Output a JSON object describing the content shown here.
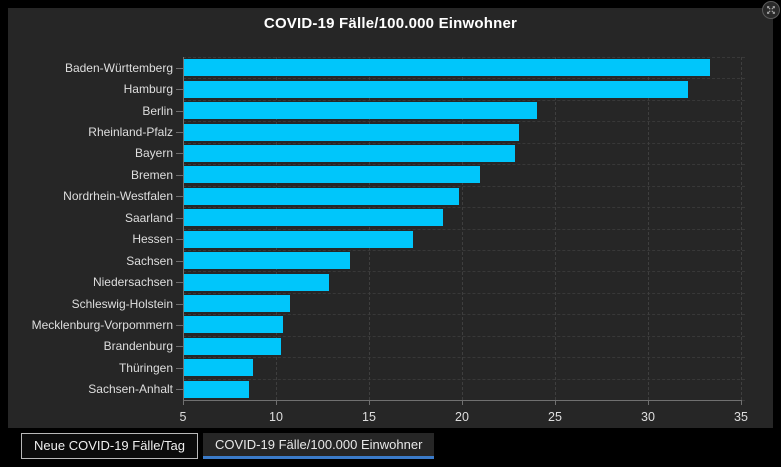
{
  "header": {
    "title": "COVID-19 Fälle/100.000 Einwohner"
  },
  "colors": {
    "page_bg": "#000000",
    "panel_bg": "#262626",
    "bar": "#00c6fb",
    "grid": "#3e3e3e",
    "axis": "#707070",
    "tick_label": "#dedede",
    "title_text": "#ffffff",
    "active_tab_underline": "#3b7bc9"
  },
  "icons": {
    "expand": "expand-arrows-icon"
  },
  "chart_data": {
    "type": "bar",
    "orientation": "horizontal",
    "title": "COVID-19 Fälle/100.000 Einwohner",
    "categories": [
      "Baden-Württemberg",
      "Hamburg",
      "Berlin",
      "Rheinland-Pfalz",
      "Bayern",
      "Bremen",
      "Nordrhein-Westfalen",
      "Saarland",
      "Hessen",
      "Sachsen",
      "Niedersachsen",
      "Schleswig-Holstein",
      "Mecklenburg-Vorpommern",
      "Brandenburg",
      "Thüringen",
      "Sachsen-Anhalt"
    ],
    "values": [
      33.3,
      32.1,
      24.0,
      23.0,
      22.8,
      20.9,
      19.8,
      18.9,
      17.3,
      13.9,
      12.8,
      10.7,
      10.3,
      10.2,
      8.7,
      8.5
    ],
    "xlabel": "",
    "ylabel": "",
    "xlim": [
      5,
      35
    ],
    "xticks": [
      5,
      10,
      15,
      20,
      25,
      30,
      35
    ],
    "grid": true,
    "legend": false,
    "bar_color": "#00c6fb"
  },
  "tabs": [
    {
      "label": "Neue COVID-19 Fälle/Tag",
      "active": false
    },
    {
      "label": "COVID-19 Fälle/100.000 Einwohner",
      "active": true
    }
  ]
}
